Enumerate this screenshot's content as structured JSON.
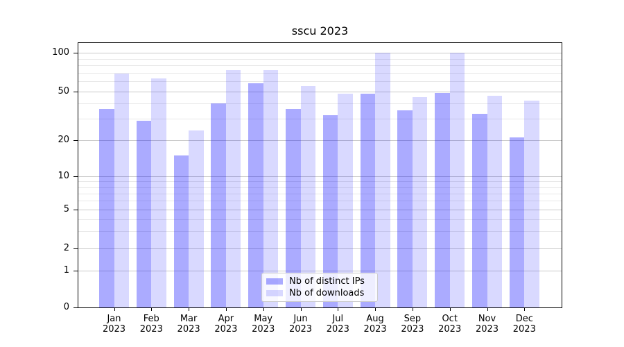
{
  "title": "sscu 2023",
  "chart_data": {
    "type": "bar",
    "title": "sscu 2023",
    "categories": [
      "Jan",
      "Feb",
      "Mar",
      "Apr",
      "May",
      "Jun",
      "Jul",
      "Aug",
      "Sep",
      "Oct",
      "Nov",
      "Dec"
    ],
    "category_year": "2023",
    "series": [
      {
        "name": "Nb of distinct IPs",
        "color": "rgba(0,0,255,0.33)",
        "values": [
          36,
          29,
          15,
          40,
          58,
          36,
          32,
          48,
          35,
          49,
          33,
          21
        ]
      },
      {
        "name": "Nb of downloads",
        "color": "rgba(0,0,255,0.15)",
        "values": [
          69,
          63,
          24,
          73,
          73,
          55,
          48,
          100,
          45,
          100,
          46,
          42
        ]
      }
    ],
    "yscale": "log-like",
    "yticks": [
      0,
      1,
      2,
      5,
      10,
      20,
      50,
      100
    ],
    "minor_yticks": [
      3,
      4,
      6,
      7,
      8,
      9,
      30,
      40,
      60,
      70,
      80,
      90
    ],
    "ylim": [
      0,
      100
    ],
    "grid": true,
    "legend_position": "lower center"
  },
  "legend": {
    "items": [
      {
        "label": "Nb of distinct IPs"
      },
      {
        "label": "Nb of downloads"
      }
    ]
  },
  "colors": {
    "ips": "rgba(0,0,255,0.33)",
    "downloads": "rgba(0,0,255,0.15)",
    "grid_major": "#c9c9c9",
    "grid_minor": "#e8e8e8",
    "spine": "#000000",
    "legend_bg": "rgba(255,255,255,0.8)",
    "legend_border": "#cccccc"
  }
}
